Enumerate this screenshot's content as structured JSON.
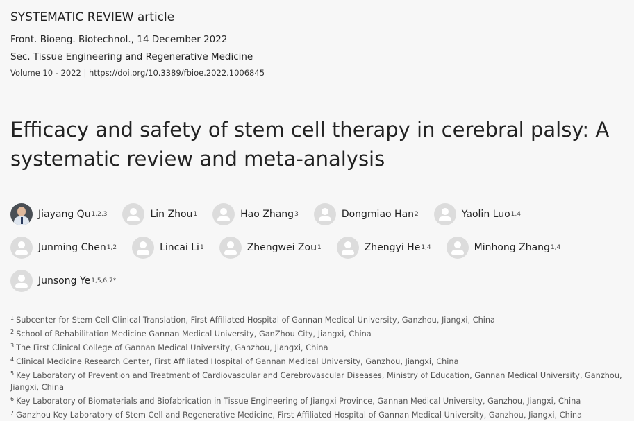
{
  "article_type": "SYSTEMATIC REVIEW article",
  "journal_line": "Front. Bioeng. Biotechnol., 14 December 2022",
  "section": "Sec. Tissue Engineering and Regenerative Medicine",
  "volume": "Volume 10 - 2022 | ",
  "doi": "https://doi.org/10.3389/fbioe.2022.1006845",
  "title": "Efficacy and safety of stem cell therapy in cerebral palsy: A systematic review and meta-analysis",
  "authors": [
    {
      "name": "Jiayang Qu",
      "sup": "1,2,3",
      "avatar": "photo"
    },
    {
      "name": "Lin Zhou",
      "sup": "1",
      "avatar": "placeholder"
    },
    {
      "name": "Hao Zhang",
      "sup": "3",
      "avatar": "placeholder"
    },
    {
      "name": "Dongmiao Han",
      "sup": "2",
      "avatar": "placeholder"
    },
    {
      "name": "Yaolin Luo",
      "sup": "1,4",
      "avatar": "placeholder"
    },
    {
      "name": "Junming Chen",
      "sup": "1,2",
      "avatar": "placeholder"
    },
    {
      "name": "Lincai Li",
      "sup": "1",
      "avatar": "placeholder"
    },
    {
      "name": "Zhengwei Zou",
      "sup": "1",
      "avatar": "placeholder"
    },
    {
      "name": "Zhengyi He",
      "sup": "1,4",
      "avatar": "placeholder"
    },
    {
      "name": "Minhong Zhang",
      "sup": "1,4",
      "avatar": "placeholder"
    },
    {
      "name": "Junsong Ye",
      "sup": "1,5,6,7*",
      "avatar": "placeholder"
    }
  ],
  "affiliations": [
    {
      "num": "1",
      "text": "Subcenter for Stem Cell Clinical Translation, First Affiliated Hospital of Gannan Medical University, Ganzhou, Jiangxi, China"
    },
    {
      "num": "2",
      "text": "School of Rehabilitation Medicine Gannan Medical University, GanZhou City, Jiangxi, China"
    },
    {
      "num": "3",
      "text": "The First Clinical College of Gannan Medical University, Ganzhou, Jiangxi, China"
    },
    {
      "num": "4",
      "text": "Clinical Medicine Research Center, First Affiliated Hospital of Gannan Medical University, Ganzhou, Jiangxi, China"
    },
    {
      "num": "5",
      "text": "Key Laboratory of Prevention and Treatment of Cardiovascular and Cerebrovascular Diseases, Ministry of Education, Gannan Medical University, Ganzhou, Jiangxi, China"
    },
    {
      "num": "6",
      "text": "Key Laboratory of Biomaterials and Biofabrication in Tissue Engineering of Jiangxi Province, Gannan Medical University, Ganzhou, Jiangxi, China"
    },
    {
      "num": "7",
      "text": "Ganzhou Key Laboratory of Stem Cell and Regenerative Medicine, First Affiliated Hospital of Gannan Medical University, Ganzhou, Jiangxi, China"
    }
  ]
}
